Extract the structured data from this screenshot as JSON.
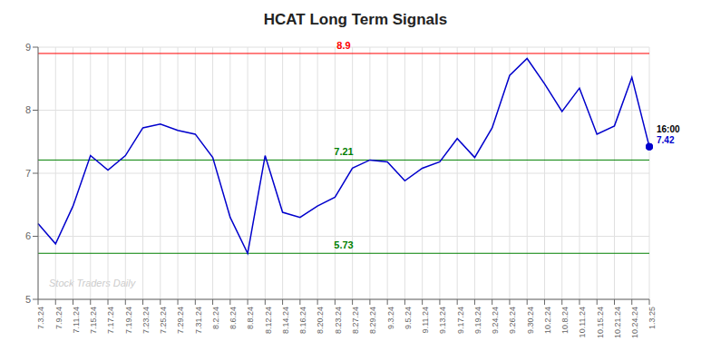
{
  "chart_data": {
    "type": "line",
    "title": "HCAT Long Term Signals",
    "categories": [
      "7.3.24",
      "7.9.24",
      "7.11.24",
      "7.15.24",
      "7.17.24",
      "7.19.24",
      "7.23.24",
      "7.25.24",
      "7.29.24",
      "7.31.24",
      "8.2.24",
      "8.6.24",
      "8.8.24",
      "8.12.24",
      "8.14.24",
      "8.16.24",
      "8.20.24",
      "8.23.24",
      "8.27.24",
      "8.29.24",
      "9.3.24",
      "9.5.24",
      "9.11.24",
      "9.13.24",
      "9.17.24",
      "9.19.24",
      "9.24.24",
      "9.26.24",
      "9.30.24",
      "10.2.24",
      "10.8.24",
      "10.11.24",
      "10.15.24",
      "10.21.24",
      "10.24.24",
      "1.3.25"
    ],
    "values": [
      6.2,
      5.88,
      6.48,
      7.28,
      7.05,
      7.28,
      7.72,
      7.78,
      7.68,
      7.62,
      7.25,
      6.3,
      5.73,
      7.28,
      6.38,
      6.3,
      6.48,
      6.62,
      7.08,
      7.21,
      7.18,
      6.88,
      7.08,
      7.18,
      7.55,
      7.25,
      7.72,
      8.55,
      8.82,
      8.42,
      7.98,
      8.35,
      7.62,
      7.75,
      8.52,
      7.42
    ],
    "color": "#0000cc",
    "ylim": [
      5,
      9
    ],
    "yticks": [
      5,
      6,
      7,
      8,
      9
    ],
    "grid": true,
    "hlines": [
      {
        "value": 8.9,
        "label": "8.9",
        "color": "red"
      },
      {
        "value": 7.21,
        "label": "7.21",
        "color": "green"
      },
      {
        "value": 5.73,
        "label": "5.73",
        "color": "green"
      }
    ],
    "annotations": [
      {
        "text": "16:00",
        "x": "1.3.25",
        "y": 7.42,
        "color": "black"
      },
      {
        "text": "7.42",
        "x": "1.3.25",
        "y": 7.42,
        "color": "#0000cc"
      }
    ],
    "watermark": {
      "text": "Stock Traders Daily",
      "color": "#cccccc"
    }
  }
}
